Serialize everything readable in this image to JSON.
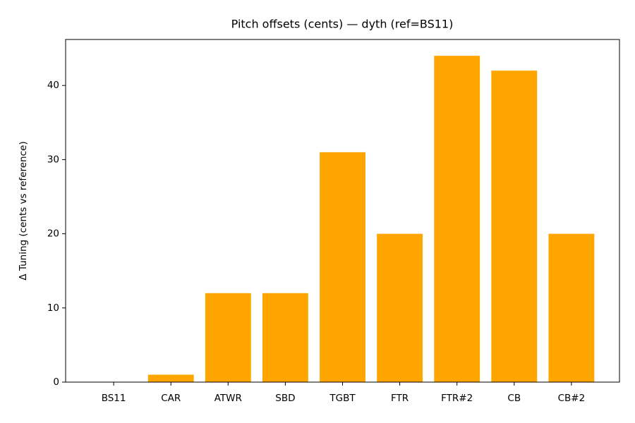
{
  "chart_data": {
    "type": "bar",
    "title": "Pitch offsets (cents) — dyth (ref=BS11)",
    "y_label": "Δ Tuning (cents vs reference)",
    "categories": [
      "BS11",
      "CAR",
      "ATWR",
      "SBD",
      "TGBT",
      "FTR",
      "FTR#2",
      "CB",
      "CB#2"
    ],
    "values": [
      0,
      1,
      12,
      12,
      31,
      20,
      44,
      42,
      20
    ],
    "color": "#ffa500",
    "ylim": [
      0,
      46.2
    ],
    "yticks": [
      0,
      10,
      20,
      30,
      40
    ],
    "grid": false
  }
}
